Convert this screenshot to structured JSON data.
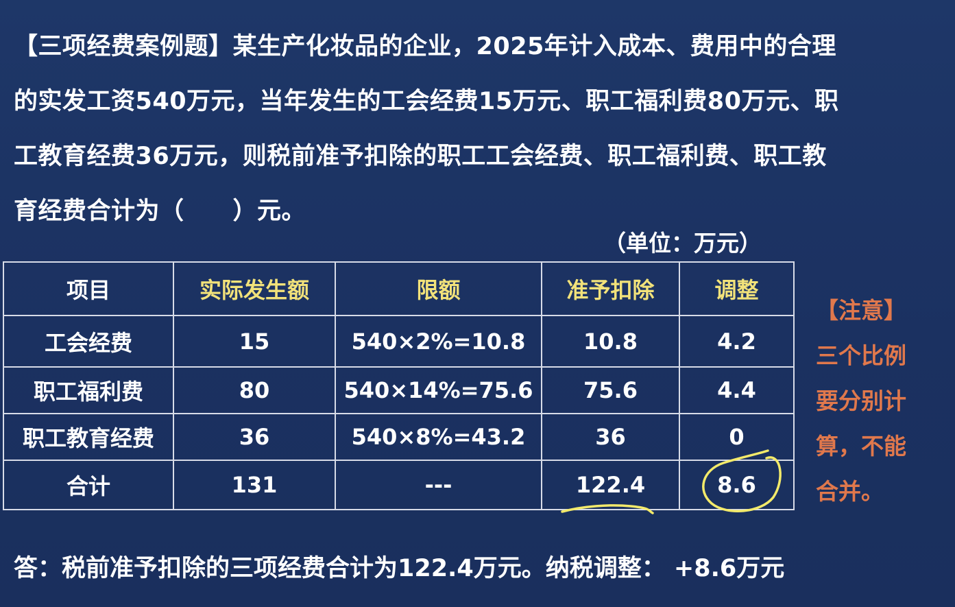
{
  "question": {
    "lines": [
      "【三项经费案例题】某生产化妆品的企业，2025年计入成本、费用中的合理",
      "的实发工资540万元，当年发生的工会经费15万元、职工福利费80万元、职",
      "工教育经费36万元，则税前准予扣除的职工工会经费、职工福利费、职工教",
      "育经费合计为（　　）元。"
    ]
  },
  "unit_label": "（单位：万元）",
  "table": {
    "headers": [
      "项目",
      "实际发生额",
      "限额",
      "准予扣除",
      "调整"
    ],
    "rows": [
      [
        "工会经费",
        "15",
        "540×2%=10.8",
        "10.8",
        "4.2"
      ],
      [
        "职工福利费",
        "80",
        "540×14%=75.6",
        "75.6",
        "4.4"
      ],
      [
        "职工教育经费",
        "36",
        "540×8%=43.2",
        "36",
        "0"
      ],
      [
        "合计",
        "131",
        "---",
        "122.4",
        "8.6"
      ]
    ]
  },
  "note": {
    "lines": [
      "【注意】",
      "三个比例",
      "要分别计",
      "算，不能",
      "合并。"
    ]
  },
  "answer": "答：税前准予扣除的三项经费合计为122.4万元。纳税调整： +8.6万元",
  "colors": {
    "background": "#1d3566",
    "header_highlight": "#f2e27a",
    "note": "#e0784c",
    "annotation": "#f3ea6a"
  }
}
